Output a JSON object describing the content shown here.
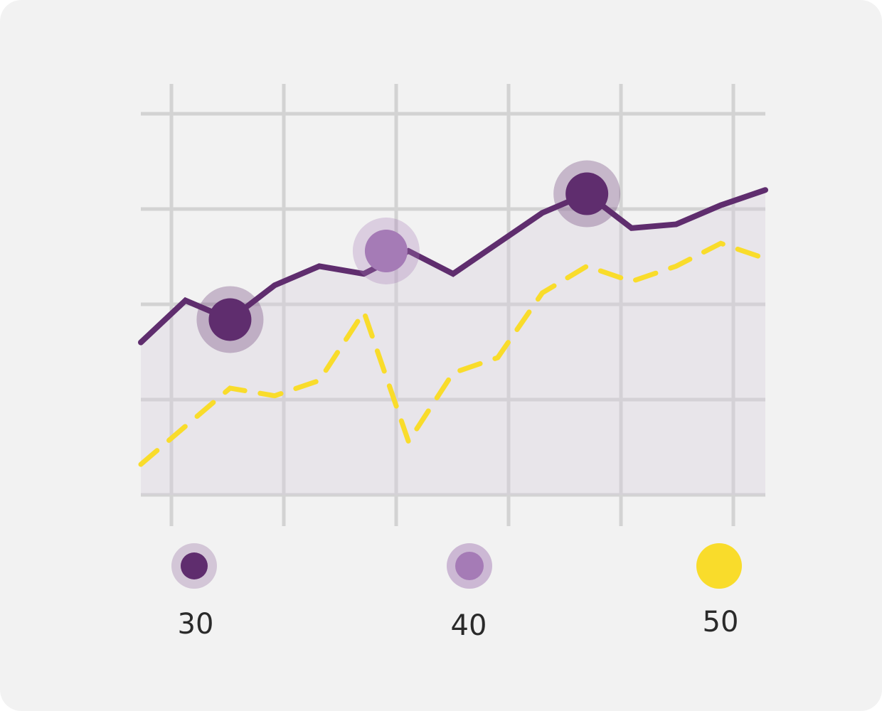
{
  "chart_data": {
    "type": "line",
    "title": "",
    "xlabel": "",
    "ylabel": "",
    "x": [
      0,
      1,
      2,
      3,
      4,
      5,
      6,
      7,
      8,
      9,
      10,
      11,
      12,
      13,
      14
    ],
    "xlim": [
      0,
      14
    ],
    "ylim": [
      0,
      100
    ],
    "grid": true,
    "legend": {
      "placement": "bottom"
    },
    "series": [
      {
        "values": [
          40,
          51,
          46,
          55,
          60,
          58,
          64,
          58,
          66,
          74,
          79,
          70,
          71,
          76,
          80
        ],
        "color": "#5f2d6e",
        "line_style": "solid",
        "area_fill": true,
        "highlight_points": [
          {
            "x": 2,
            "y": 46,
            "color": "#5f2d6e"
          },
          {
            "x": 5.5,
            "y": 64,
            "color": "#a57bb6"
          },
          {
            "x": 10,
            "y": 79,
            "color": "#5f2d6e"
          }
        ]
      },
      {
        "values": [
          8,
          18,
          28,
          26,
          30,
          48,
          14,
          32,
          36,
          53,
          60,
          56,
          60,
          66,
          62
        ],
        "color": "#f9dc2b",
        "line_style": "dashed"
      }
    ]
  },
  "legend": [
    {
      "label": "30",
      "color": "#5f2d6e",
      "halo": "#d3c6d7"
    },
    {
      "label": "40",
      "color": "#a57bb6",
      "halo": "#ccb8d4"
    },
    {
      "label": "50",
      "color": "#f9dc2b",
      "halo": ""
    }
  ]
}
